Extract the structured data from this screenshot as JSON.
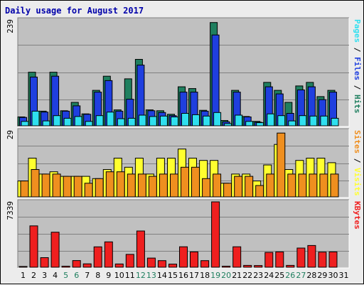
{
  "chart_data": {
    "type": "bar",
    "title": "Daily usage for August 2017",
    "categories": [
      "1",
      "2",
      "3",
      "4",
      "5",
      "6",
      "7",
      "8",
      "9",
      "10",
      "11",
      "12",
      "13",
      "14",
      "15",
      "16",
      "17",
      "18",
      "19",
      "20",
      "21",
      "22",
      "23",
      "24",
      "25",
      "26",
      "27",
      "28",
      "29",
      "30",
      "31"
    ],
    "weekend_days": [
      "5",
      "6",
      "12",
      "13",
      "19",
      "20",
      "26",
      "27"
    ],
    "colors": {
      "hits": "#1f7f5f",
      "files": "#1f3fdf",
      "pages": "#2fdfef",
      "visits": "#ffff2f",
      "sites": "#ef8f1f",
      "kbytes": "#ef1f1f",
      "weekday_label": "#000000",
      "weekend_label": "#1f7f5f",
      "plot_bg": "#c0c0c0",
      "frame_bg": "#ececec"
    },
    "panels": [
      {
        "id": "hits-files-pages",
        "ymax_label": "239",
        "ymax": 239,
        "side_label": [
          {
            "text": "Pages",
            "color": "#2fdfef"
          },
          {
            "text": " / ",
            "color": "#000000"
          },
          {
            "text": "Files",
            "color": "#1f3fdf"
          },
          {
            "text": " / ",
            "color": "#000000"
          },
          {
            "text": "Hits",
            "color": "#1f7f5f"
          }
        ],
        "series": [
          {
            "name": "Hits",
            "color": "#1f7f5f",
            "values": [
              20,
              121,
              33,
              121,
              34,
              53,
              27,
              80,
              112,
              36,
              106,
              150,
              36,
              34,
              26,
              88,
              84,
              35,
              233,
              12,
              80,
              21,
              10,
              98,
              80,
              53,
              90,
              98,
              66,
              80,
              0
            ]
          },
          {
            "name": "Files",
            "color": "#1f3fdf",
            "values": [
              19,
              110,
              31,
              112,
              33,
              45,
              26,
              76,
              102,
              33,
              60,
              137,
              34,
              30,
              23,
              76,
              76,
              33,
              205,
              9,
              76,
              20,
              8,
              88,
              72,
              28,
              81,
              88,
              59,
              76,
              0
            ]
          },
          {
            "name": "Pages",
            "color": "#2fdfef",
            "values": [
              10,
              33,
              11,
              23,
              17,
              21,
              10,
              23,
              31,
              16,
              17,
              24,
              21,
              22,
              20,
              28,
              25,
              22,
              30,
              5,
              24,
              10,
              7,
              27,
              23,
              11,
              23,
              22,
              22,
              17,
              0
            ]
          }
        ]
      },
      {
        "id": "visits-sites",
        "ymax_label": "29",
        "ymax": 29,
        "side_label": [
          {
            "text": "Sites",
            "color": "#ef8f1f"
          },
          {
            "text": " / ",
            "color": "#000000"
          },
          {
            "text": "Visits",
            "color": "#ffff2f"
          }
        ],
        "series": [
          {
            "name": "Visits",
            "color": "#ffff2f",
            "values": [
              7,
              17,
              10,
              11,
              9,
              9,
              9,
              8,
              12,
              17,
              13,
              17,
              10,
              17,
              17,
              21,
              17,
              16,
              16,
              6,
              10,
              10,
              7,
              14,
              23,
              12,
              16,
              17,
              17,
              15,
              0
            ]
          },
          {
            "name": "Sites",
            "color": "#ef8f1f",
            "values": [
              7,
              12,
              10,
              10,
              9,
              9,
              6,
              8,
              11,
              11,
              10,
              10,
              9,
              10,
              10,
              13,
              13,
              8,
              10,
              6,
              9,
              9,
              5,
              10,
              28,
              10,
              10,
              10,
              10,
              10,
              0
            ]
          }
        ]
      },
      {
        "id": "kbytes",
        "ymax_label": "7339",
        "ymax": 7339,
        "side_label": [
          {
            "text": "KBytes",
            "color": "#ef1f1f"
          }
        ],
        "series": [
          {
            "name": "KBytes",
            "color": "#ef1f1f",
            "values": [
              90,
              4640,
              1080,
              3930,
              120,
              750,
              380,
              2290,
              2850,
              370,
              1440,
              4070,
              1030,
              740,
              350,
              2300,
              1720,
              740,
              7339,
              120,
              2300,
              210,
              190,
              1670,
              1720,
              210,
              2150,
              2440,
              1700,
              1720,
              0
            ]
          }
        ]
      }
    ]
  }
}
